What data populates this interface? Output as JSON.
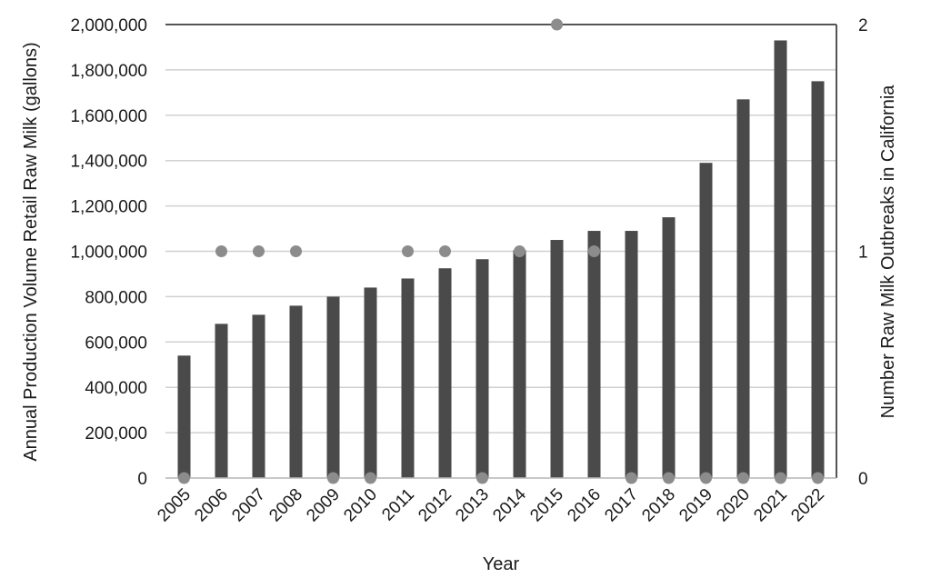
{
  "chart_data": {
    "type": "bar",
    "title": "",
    "xlabel": "Year",
    "ylabel": "Annual Production Volume Retail Raw Milk (gallons)",
    "y2label": "Number Raw Milk Outbreaks in California",
    "categories": [
      "2005",
      "2006",
      "2007",
      "2008",
      "2009",
      "2010",
      "2011",
      "2012",
      "2013",
      "2014",
      "2015",
      "2016",
      "2017",
      "2018",
      "2019",
      "2020",
      "2021",
      "2022"
    ],
    "ylim": [
      0,
      2000000
    ],
    "y_ticks": [
      "0",
      "200,000",
      "400,000",
      "600,000",
      "800,000",
      "1,000,000",
      "1,200,000",
      "1,400,000",
      "1,600,000",
      "1,800,000",
      "2,000,000"
    ],
    "y2lim": [
      0,
      2
    ],
    "y2_ticks": [
      "0",
      "1",
      "2"
    ],
    "grid": true,
    "legend": "none",
    "series": [
      {
        "type": "bar",
        "axis": "left",
        "color": "#4a4a4a",
        "values": [
          540000,
          680000,
          720000,
          760000,
          800000,
          840000,
          880000,
          925000,
          965000,
          1005000,
          1050000,
          1090000,
          1090000,
          1150000,
          1390000,
          1670000,
          1930000,
          1750000
        ]
      },
      {
        "type": "scatter",
        "axis": "right",
        "color": "#8c8c8c",
        "values": [
          0,
          1,
          1,
          1,
          0,
          0,
          1,
          1,
          0,
          1,
          2,
          1,
          0,
          0,
          0,
          0,
          0,
          0
        ]
      }
    ]
  }
}
